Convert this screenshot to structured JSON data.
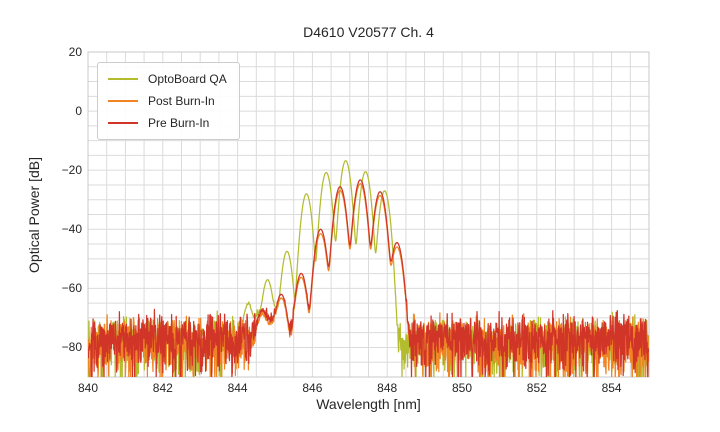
{
  "chart_data": {
    "type": "line",
    "title": "D4610 V20577 Ch. 4",
    "xlabel": "Wavelength [nm]",
    "ylabel": "Optical Power [dB]",
    "xlim": [
      840,
      855
    ],
    "ylim": [
      -90,
      20
    ],
    "xticks": [
      840,
      842,
      844,
      846,
      848,
      850,
      852,
      854
    ],
    "yticks": [
      20,
      0,
      -20,
      -40,
      -60,
      -80
    ],
    "grid": {
      "x_step_nm": 0.5,
      "y_step_db": 5,
      "color": "#dbdbdb",
      "frame_color": "#c9c9c9",
      "background": "#ffffff"
    },
    "legend": {
      "loc": "upper left",
      "entries": [
        "OptoBoard QA",
        "Post Burn-In",
        "Pre Burn-In"
      ]
    },
    "series": [
      {
        "name": "OptoBoard QA",
        "color": "#b3bc2d",
        "mode_width_nm": 0.102,
        "noise_floor_db": -76.8,
        "pedestal": {
          "center_nm": 844.95,
          "sigma_nm": 0.55,
          "peak_db": -67.5
        },
        "modes": [
          [
            844.28,
            -66.0
          ],
          [
            844.8,
            -57.5
          ],
          [
            845.32,
            -47.5
          ],
          [
            845.84,
            -28.0
          ],
          [
            846.37,
            -20.8
          ],
          [
            846.89,
            -16.8
          ],
          [
            847.42,
            -20.5
          ],
          [
            847.93,
            -27.0
          ]
        ],
        "seed": 7
      },
      {
        "name": "Post Burn-In",
        "color": "#f08322",
        "mode_width_nm": 0.115,
        "noise_floor_db": -76.3,
        "pedestal": {
          "center_nm": 844.95,
          "sigma_nm": 0.35,
          "peak_db": -72.5
        },
        "modes": [
          [
            844.65,
            -70.3
          ],
          [
            845.17,
            -63.8
          ],
          [
            845.7,
            -56.3
          ],
          [
            846.22,
            -41.5
          ],
          [
            846.74,
            -26.9
          ],
          [
            847.28,
            -24.6
          ],
          [
            847.81,
            -28.6
          ],
          [
            848.26,
            -46.0
          ]
        ],
        "seed": 13
      },
      {
        "name": "Pre Burn-In",
        "color": "#d03528",
        "mode_width_nm": 0.115,
        "noise_floor_db": -75.6,
        "pedestal": {
          "center_nm": 844.95,
          "sigma_nm": 0.35,
          "peak_db": -71.5
        },
        "modes": [
          [
            844.65,
            -69.0
          ],
          [
            845.17,
            -62.5
          ],
          [
            845.7,
            -55.0
          ],
          [
            846.22,
            -40.0
          ],
          [
            846.74,
            -25.6
          ],
          [
            847.28,
            -23.3
          ],
          [
            847.81,
            -27.3
          ],
          [
            848.26,
            -44.5
          ]
        ],
        "seed": 29
      }
    ]
  }
}
